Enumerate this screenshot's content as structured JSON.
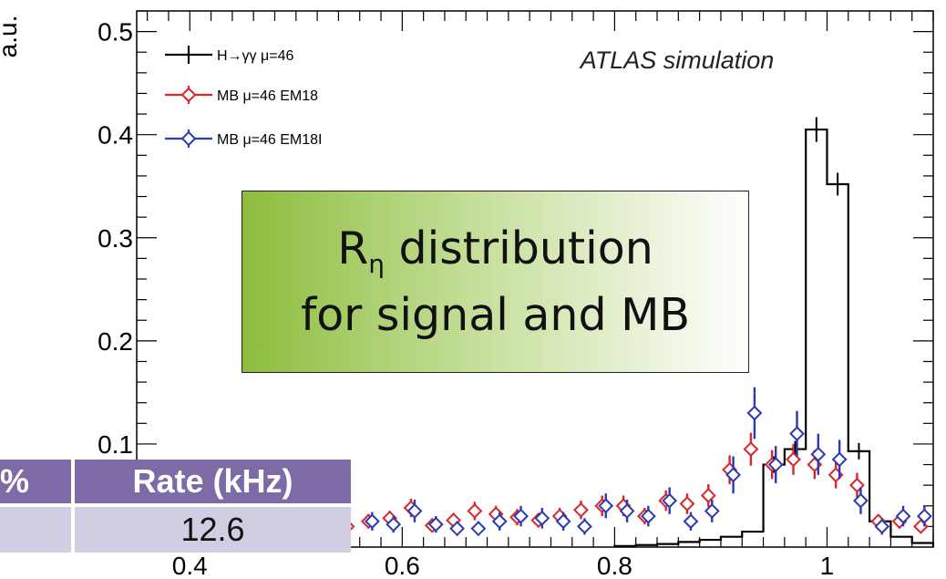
{
  "chart_data": {
    "type": "step-histogram-with-errorbars",
    "ylabel": "a.u.",
    "xlabel": "",
    "annotation": "ATLAS simulation",
    "xlim": [
      0.35,
      1.1
    ],
    "ylim": [
      0,
      0.52
    ],
    "x_ticks": [
      {
        "value": 0.4,
        "label": "0.4"
      },
      {
        "value": 0.6,
        "label": "0.6"
      },
      {
        "value": 0.8,
        "label": "0.8"
      },
      {
        "value": 1.0,
        "label": "1"
      }
    ],
    "y_ticks": [
      {
        "value": 0.1,
        "label": "0.1"
      },
      {
        "value": 0.2,
        "label": "0.2"
      },
      {
        "value": 0.3,
        "label": "0.3"
      },
      {
        "value": 0.4,
        "label": "0.4"
      },
      {
        "value": 0.5,
        "label": "0.5"
      }
    ],
    "legend_position": "top-left",
    "series": [
      {
        "name": "H→γγ μ=46",
        "color": "#000000",
        "style": "step",
        "edges": [
          0.8,
          0.82,
          0.84,
          0.86,
          0.88,
          0.9,
          0.92,
          0.94,
          0.96,
          0.98,
          1.0,
          1.02,
          1.04,
          1.06,
          1.08,
          1.1
        ],
        "values": [
          0.001,
          0.002,
          0.003,
          0.005,
          0.007,
          0.01,
          0.015,
          0.08,
          0.095,
          0.405,
          0.352,
          0.093,
          0.025,
          0.01,
          0.004
        ],
        "errors": [
          0.001,
          0.001,
          0.001,
          0.001,
          0.002,
          0.002,
          0.003,
          0.008,
          0.008,
          0.012,
          0.011,
          0.008,
          0.005,
          0.003,
          0.002
        ]
      },
      {
        "name": "MB μ=46 EM18",
        "color": "#d8262b",
        "style": "markers",
        "x": [
          0.51,
          0.53,
          0.55,
          0.57,
          0.59,
          0.61,
          0.63,
          0.65,
          0.67,
          0.69,
          0.71,
          0.73,
          0.75,
          0.77,
          0.79,
          0.81,
          0.83,
          0.85,
          0.87,
          0.89,
          0.91,
          0.93,
          0.95,
          0.97,
          0.99,
          1.01,
          1.03,
          1.05,
          1.07,
          1.09
        ],
        "y": [
          0.025,
          0.031,
          0.02,
          0.025,
          0.028,
          0.038,
          0.021,
          0.026,
          0.035,
          0.032,
          0.029,
          0.026,
          0.03,
          0.036,
          0.04,
          0.04,
          0.03,
          0.045,
          0.042,
          0.05,
          0.075,
          0.095,
          0.08,
          0.085,
          0.08,
          0.07,
          0.06,
          0.025,
          0.025,
          0.02
        ],
        "errors": [
          0.007,
          0.007,
          0.006,
          0.007,
          0.007,
          0.009,
          0.006,
          0.007,
          0.009,
          0.008,
          0.008,
          0.007,
          0.008,
          0.009,
          0.01,
          0.01,
          0.008,
          0.01,
          0.01,
          0.011,
          0.014,
          0.016,
          0.014,
          0.015,
          0.014,
          0.013,
          0.012,
          0.007,
          0.007,
          0.006
        ]
      },
      {
        "name": "MB μ=46 EM18I",
        "color": "#2b3ab0",
        "style": "markers",
        "x": [
          0.43,
          0.51,
          0.53,
          0.57,
          0.59,
          0.61,
          0.63,
          0.65,
          0.67,
          0.69,
          0.71,
          0.73,
          0.75,
          0.77,
          0.79,
          0.81,
          0.83,
          0.85,
          0.87,
          0.89,
          0.91,
          0.93,
          0.95,
          0.97,
          0.99,
          1.01,
          1.03,
          1.05,
          1.07,
          1.09
        ],
        "y": [
          0.02,
          0.02,
          0.03,
          0.025,
          0.022,
          0.035,
          0.022,
          0.018,
          0.018,
          0.025,
          0.03,
          0.028,
          0.025,
          0.02,
          0.04,
          0.035,
          0.03,
          0.045,
          0.025,
          0.035,
          0.07,
          0.13,
          0.08,
          0.11,
          0.09,
          0.085,
          0.045,
          0.02,
          0.03,
          0.03
        ],
        "errors": [
          0.008,
          0.008,
          0.01,
          0.009,
          0.008,
          0.011,
          0.008,
          0.007,
          0.007,
          0.009,
          0.01,
          0.01,
          0.009,
          0.008,
          0.012,
          0.011,
          0.01,
          0.013,
          0.009,
          0.011,
          0.018,
          0.025,
          0.018,
          0.022,
          0.02,
          0.019,
          0.013,
          0.008,
          0.01,
          0.01
        ]
      }
    ]
  },
  "callout": {
    "r_symbol": "R",
    "eta_symbol": "η",
    "title_rest": " distribution",
    "line2": "for signal and MB"
  },
  "table": {
    "header": [
      "%",
      "Rate (kHz)"
    ],
    "row": [
      "",
      "12.6"
    ]
  }
}
